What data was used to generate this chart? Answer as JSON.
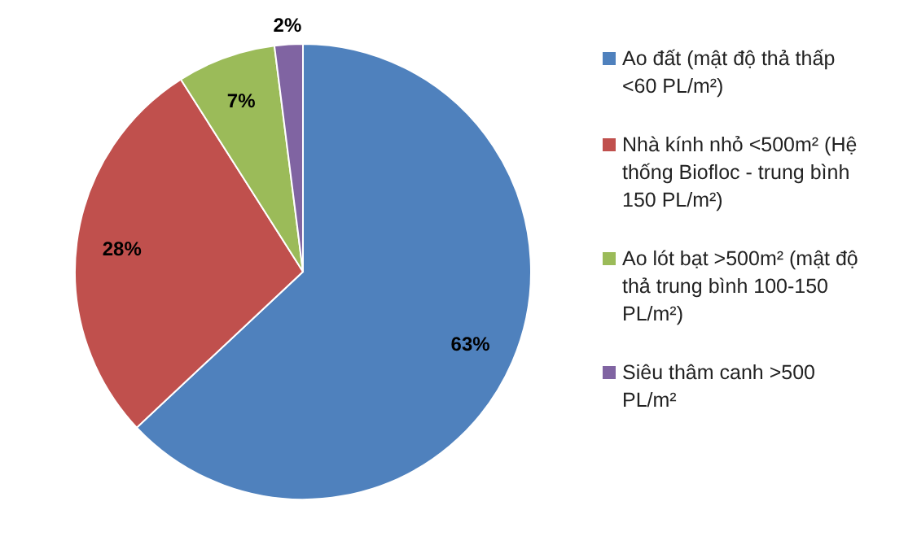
{
  "chart_data": {
    "type": "pie",
    "categories": [
      "Ao đất (mật độ thả thấp <60 PL/m²)",
      "Nhà kính nhỏ <500m² (Hệ thống Biofloc - trung bình 150 PL/m²)",
      "Ao lót bạt >500m² (mật độ thả trung bình 100-150 PL/m²)",
      "Siêu thâm canh >500 PL/m²"
    ],
    "values": [
      63,
      28,
      7,
      2
    ],
    "colors": [
      "#4f81bd",
      "#c0504d",
      "#9bbb59",
      "#8064a2"
    ],
    "value_labels": [
      "63%",
      "28%",
      "7%",
      "2%"
    ],
    "legend": "right"
  }
}
